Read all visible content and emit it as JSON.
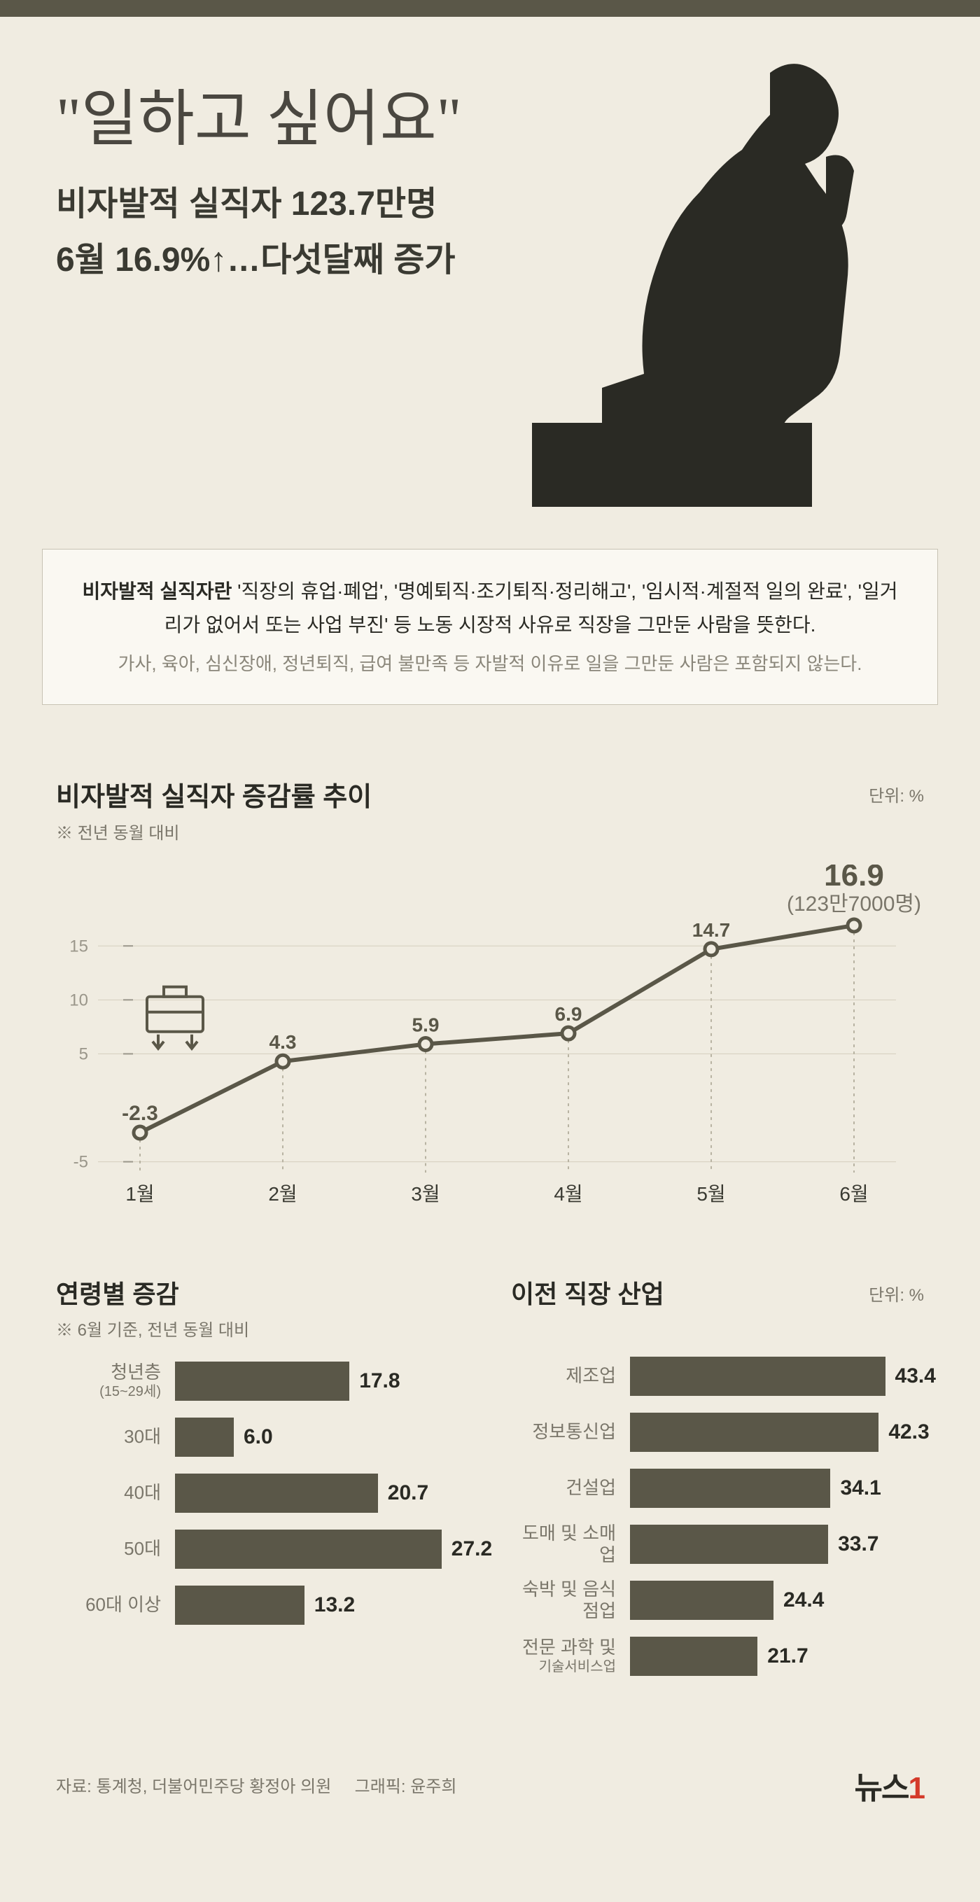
{
  "hero": {
    "title": "\"일하고 싶어요\"",
    "subtitle1": "비자발적 실직자 123.7만명",
    "subtitle2_a": "6월 16.9%",
    "subtitle2_b": "…다섯달째 증가"
  },
  "definition": {
    "lead": "비자발적 실직자란",
    "main_rest": " '직장의 휴업·폐업', '명예퇴직·조기퇴직·정리해고', '임시적·계절적 일의 완료', '일거리가 없어서 또는 사업 부진' 등 노동 시장적 사유로 직장을 그만둔 사람을 뜻한다.",
    "sub": "가사, 육아, 심신장애, 정년퇴직, 급여 불만족 등 자발적 이유로 일을 그만둔 사람은 포함되지 않는다."
  },
  "line_chart": {
    "title": "비자발적 실직자 증감률 추이",
    "note": "※ 전년 동월 대비",
    "unit": "단위: %",
    "highlight_value": "16.9",
    "highlight_sub": "(123만7000명)",
    "x_labels": [
      "1월",
      "2월",
      "3월",
      "4월",
      "5월",
      "6월"
    ],
    "y_ticks": [
      -5,
      5,
      10,
      15
    ],
    "values": [
      -2.3,
      4.3,
      5.9,
      6.9,
      14.7,
      16.9
    ],
    "line_color": "#5a5748",
    "point_fill": "#f0ece1",
    "grid_color": "#d4cfbd",
    "ymin": -6,
    "ymax": 18
  },
  "age_chart": {
    "title": "연령별 증감",
    "note": "※ 6월 기준, 전년 동월 대비",
    "max": 30,
    "bar_color": "#5a5748",
    "items": [
      {
        "label": "청년층",
        "sub": "(15~29세)",
        "val": 17.8
      },
      {
        "label": "30대",
        "val": 6.0
      },
      {
        "label": "40대",
        "val": 20.7
      },
      {
        "label": "50대",
        "val": 27.2
      },
      {
        "label": "60대 이상",
        "val": 13.2
      }
    ]
  },
  "industry_chart": {
    "title": "이전 직장 산업",
    "unit": "단위: %",
    "max": 50,
    "bar_color": "#5a5748",
    "items": [
      {
        "label": "제조업",
        "val": 43.4
      },
      {
        "label": "정보통신업",
        "val": 42.3
      },
      {
        "label": "건설업",
        "val": 34.1
      },
      {
        "label": "도매 및 소매업",
        "val": 33.7
      },
      {
        "label": "숙박 및 음식점업",
        "val": 24.4
      },
      {
        "label": "전문 과학 및",
        "sub": "기술서비스업",
        "val": 21.7
      }
    ]
  },
  "footer": {
    "source": "자료: 통계청, 더불어민주당 황정아 의원",
    "graphic": "그래픽: 윤주희",
    "logo_a": "뉴스",
    "logo_b": "1"
  }
}
